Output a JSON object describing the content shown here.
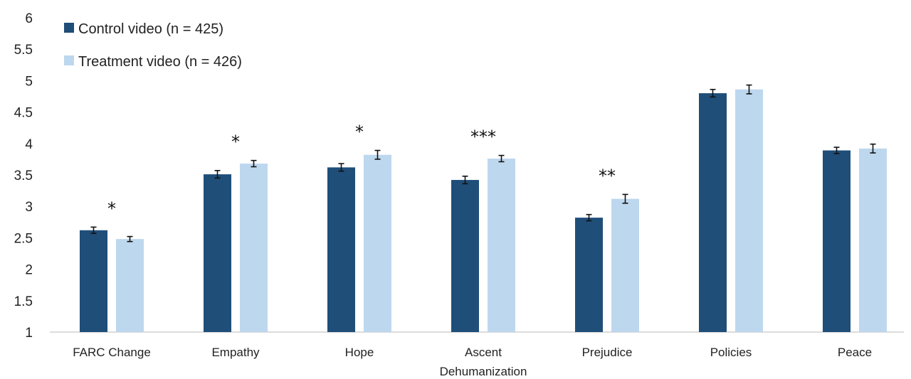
{
  "chart_data": {
    "type": "bar",
    "title": "",
    "xlabel": "",
    "ylabel": "",
    "ylim": [
      1,
      6
    ],
    "yticks": [
      "1",
      "1.5",
      "2",
      "2.5",
      "3",
      "3.5",
      "4",
      "4.5",
      "5",
      "5.5",
      "6"
    ],
    "grid": false,
    "legend_position": "top-left",
    "categories": [
      [
        "FARC Change"
      ],
      [
        "Empathy"
      ],
      [
        "Hope"
      ],
      [
        "Ascent",
        "Dehumanization"
      ],
      [
        "Prejudice"
      ],
      [
        "Policies"
      ],
      [
        "Peace"
      ]
    ],
    "series": [
      {
        "name": "Control video (n = 425)",
        "color": "#1f4e79",
        "values": [
          2.62,
          3.51,
          3.62,
          3.42,
          2.82,
          4.8,
          3.89
        ],
        "error": [
          0.05,
          0.06,
          0.06,
          0.06,
          0.05,
          0.06,
          0.05
        ]
      },
      {
        "name": "Treatment video (n = 426)",
        "color": "#bdd7ee",
        "values": [
          2.48,
          3.68,
          3.82,
          3.76,
          3.12,
          4.86,
          3.92
        ],
        "error": [
          0.04,
          0.05,
          0.07,
          0.05,
          0.07,
          0.07,
          0.07
        ]
      }
    ],
    "annotations": [
      "*",
      "*",
      "*",
      "***",
      "**",
      "",
      ""
    ]
  }
}
